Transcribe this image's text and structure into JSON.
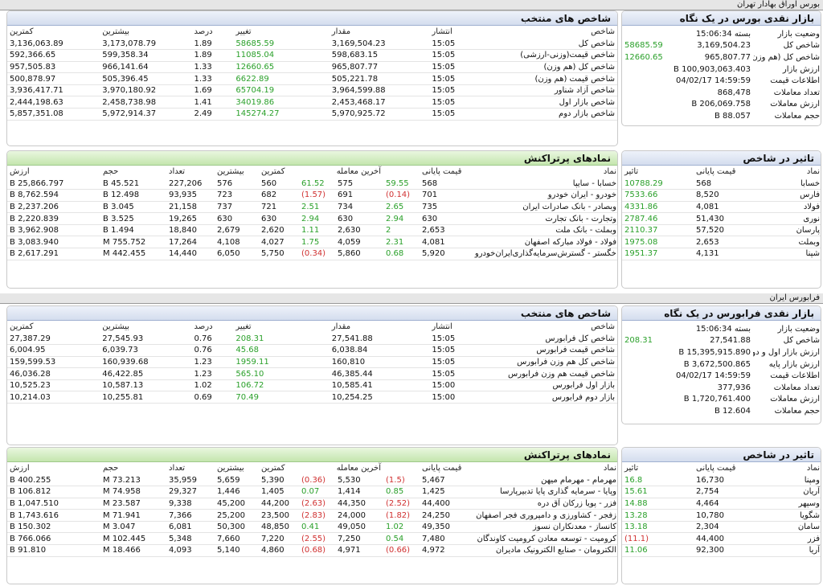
{
  "sections": {
    "bourse": "بورس اوراق بهادار تهران",
    "farabourse": "فرابورس ایران"
  },
  "bourse": {
    "glance": {
      "title": "بازار نقدی بورس در یک نگاه",
      "rows": [
        {
          "label": "وضعیت بازار",
          "value": "بسته 15:06:34",
          "extra": ""
        },
        {
          "label": "شاخص کل",
          "value": "3,169,504.23",
          "extra": "58685.59"
        },
        {
          "label": "شاخص کل (هم وزن)",
          "value": "965,807.77",
          "extra": "12660.65"
        },
        {
          "label": "ارزش بازار",
          "value": "100,903,063.403 B",
          "extra": ""
        },
        {
          "label": "اطلاعات قیمت",
          "value": "14:59:59 04/02/17",
          "extra": ""
        },
        {
          "label": "تعداد معاملات",
          "value": "868,478",
          "extra": ""
        },
        {
          "label": "ارزش معاملات",
          "value": "206,069.758 B",
          "extra": ""
        },
        {
          "label": "حجم معاملات",
          "value": "88.057 B",
          "extra": ""
        }
      ]
    },
    "indices": {
      "title": "شاخص های منتخب",
      "headers": [
        "شاخص",
        "انتشار",
        "مقدار",
        "تغییر",
        "درصد",
        "بیشترین",
        "کمترین"
      ],
      "rows": [
        [
          "شاخص کل",
          "15:05",
          "3,169,504.23",
          "58685.59",
          "1.89",
          "3,173,078.79",
          "3,136,063.89"
        ],
        [
          "شاخص قیمت(وزنی-ارزشی)",
          "15:05",
          "598,683.15",
          "11085.04",
          "1.89",
          "599,358.34",
          "592,366.65"
        ],
        [
          "شاخص کل (هم وزن)",
          "15:05",
          "965,807.77",
          "12660.65",
          "1.33",
          "966,141.64",
          "957,505.83"
        ],
        [
          "شاخص قیمت (هم وزن)",
          "15:05",
          "505,221.78",
          "6622.89",
          "1.33",
          "505,396.45",
          "500,878.97"
        ],
        [
          "شاخص آزاد شناور",
          "15:05",
          "3,964,599.88",
          "65704.19",
          "1.69",
          "3,970,180.92",
          "3,936,417.71"
        ],
        [
          "شاخص بازار اول",
          "15:05",
          "2,453,468.17",
          "34019.86",
          "1.41",
          "2,458,738.98",
          "2,444,198.63"
        ],
        [
          "شاخص بازار دوم",
          "15:05",
          "5,970,925.72",
          "145274.27",
          "2.49",
          "5,972,914.37",
          "5,857,351.08"
        ]
      ]
    },
    "impact": {
      "title": "تاثیر در شاخص",
      "headers": [
        "نماد",
        "قیمت پایانی",
        "تاثیر"
      ],
      "rows": [
        [
          "خسابا",
          "568",
          "10788.29"
        ],
        [
          "فارس",
          "8,520",
          "7533.66"
        ],
        [
          "فولاد",
          "4,081",
          "4331.86"
        ],
        [
          "نوری",
          "51,430",
          "2787.46"
        ],
        [
          "پارسان",
          "57,520",
          "2110.37"
        ],
        [
          "وبملت",
          "2,653",
          "1975.08"
        ],
        [
          "شپنا",
          "4,131",
          "1951.37"
        ]
      ]
    },
    "top": {
      "title": "نمادهای پرتراکنش",
      "headers": [
        "نماد",
        "قیمت پایانی",
        "",
        "آخرین معامله",
        "",
        "کمترین",
        "بیشترین",
        "تعداد",
        "حجم",
        "ارزش"
      ],
      "rows": [
        [
          "خسابا - سایپا",
          "568",
          "59.55",
          "575",
          "61.52",
          "560",
          "576",
          "227,206",
          "45.521 B",
          "25,866.797 B"
        ],
        [
          "خودرو - ایران خودرو",
          "701",
          "(0.14)",
          "691",
          "(1.57)",
          "682",
          "723",
          "93,935",
          "12.498 B",
          "8,762.594 B"
        ],
        [
          "وبصادر - بانک صادرات ایران",
          "735",
          "2.65",
          "734",
          "2.51",
          "721",
          "737",
          "21,158",
          "3.045 B",
          "2,237.206 B"
        ],
        [
          "وتجارت - بانک تجارت",
          "630",
          "2.94",
          "630",
          "2.94",
          "630",
          "630",
          "19,265",
          "3.525 B",
          "2,220.839 B"
        ],
        [
          "وبملت - بانک ملت",
          "2,653",
          "2",
          "2,630",
          "1.11",
          "2,620",
          "2,679",
          "18,840",
          "1.494 B",
          "3,962.908 B"
        ],
        [
          "فولاد - فولاد مبارکه اصفهان",
          "4,081",
          "2.31",
          "4,059",
          "1.75",
          "4,027",
          "4,108",
          "17,264",
          "755.752 M",
          "3,083.940 B"
        ],
        [
          "خگستر - گسترش‌سرمایه‌گذاری‌ایران‌خودرو",
          "5,920",
          "0.68",
          "5,860",
          "(0.34)",
          "5,750",
          "6,050",
          "14,440",
          "442.455 M",
          "2,617.291 B"
        ]
      ]
    }
  },
  "farabourse": {
    "glance": {
      "title": "بازار نقدی فرابورس در یک نگاه",
      "rows": [
        {
          "label": "وضعیت بازار",
          "value": "بسته 15:06:34",
          "extra": ""
        },
        {
          "label": "شاخص کل",
          "value": "27,541.88",
          "extra": "208.31"
        },
        {
          "label": "ارزش بازار اول و دوم",
          "value": "15,395,915.890 B",
          "extra": ""
        },
        {
          "label": "ارزش بازار پایه",
          "value": "3,672,500.865 B",
          "extra": ""
        },
        {
          "label": "اطلاعات قیمت",
          "value": "14:59:59 04/02/17",
          "extra": ""
        },
        {
          "label": "تعداد معاملات",
          "value": "377,936",
          "extra": ""
        },
        {
          "label": "ارزش معاملات",
          "value": "1,720,761.400 B",
          "extra": ""
        },
        {
          "label": "حجم معاملات",
          "value": "12.604 B",
          "extra": ""
        }
      ]
    },
    "indices": {
      "title": "شاخص های منتخب",
      "headers": [
        "شاخص",
        "انتشار",
        "مقدار",
        "تغییر",
        "درصد",
        "بیشترین",
        "کمترین"
      ],
      "rows": [
        [
          "شاخص کل فرابورس",
          "15:05",
          "27,541.88",
          "208.31",
          "0.76",
          "27,545.93",
          "27,387.29"
        ],
        [
          "شاخص قیمت فرابورس",
          "15:05",
          "6,038.84",
          "45.68",
          "0.76",
          "6,039.73",
          "6,004.95"
        ],
        [
          "شاخص کل هم وزن فرابورس",
          "15:05",
          "160,810",
          "1959.11",
          "1.23",
          "160,939.68",
          "159,599.53"
        ],
        [
          "شاخص قیمت هم وزن فرابورس",
          "15:05",
          "46,385.44",
          "565.10",
          "1.23",
          "46,422.85",
          "46,036.28"
        ],
        [
          "بازار اول فرابورس",
          "15:00",
          "10,585.41",
          "106.72",
          "1.02",
          "10,587.13",
          "10,525.23"
        ],
        [
          "بازار دوم فرابورس",
          "15:00",
          "10,254.25",
          "70.49",
          "0.69",
          "10,255.81",
          "10,214.03"
        ]
      ]
    },
    "impact": {
      "title": "تاثیر در شاخص",
      "headers": [
        "نماد",
        "قیمت پایانی",
        "تاثیر"
      ],
      "rows": [
        [
          "ومپنا",
          "16,730",
          "16.8"
        ],
        [
          "آریان",
          "2,754",
          "15.61"
        ],
        [
          "وسپهر",
          "4,464",
          "14.88"
        ],
        [
          "شگویا",
          "10,780",
          "13.28"
        ],
        [
          "سامان",
          "2,304",
          "13.18"
        ],
        [
          "فزر",
          "44,400",
          "(11.1)"
        ],
        [
          "آریا",
          "92,300",
          "11.06"
        ]
      ]
    },
    "top": {
      "title": "نمادهای پرتراکنش",
      "headers": [
        "نماد",
        "قیمت پایانی",
        "",
        "آخرین معامله",
        "",
        "کمترین",
        "بیشترین",
        "تعداد",
        "حجم",
        "ارزش"
      ],
      "rows": [
        [
          "مهرمام - مهرمام میهن",
          "5,467",
          "(1.5)",
          "5,530",
          "(0.36)",
          "5,390",
          "5,659",
          "35,959",
          "73.213 M",
          "400.255 B"
        ],
        [
          "وپایا - سرمایه گذاری پایا تدبیرپارسا",
          "1,425",
          "0.85",
          "1,414",
          "0.07",
          "1,405",
          "1,446",
          "29,327",
          "74.958 M",
          "106.812 B"
        ],
        [
          "فزر - پویا زرکان آق دره",
          "44,400",
          "(2.52)",
          "44,350",
          "(2.63)",
          "44,200",
          "45,200",
          "9,338",
          "23.587 M",
          "1,047.510 B"
        ],
        [
          "زفجر - کشاورزی و دامپروری فجر اصفهان",
          "24,250",
          "(1.82)",
          "24,000",
          "(2.83)",
          "23,500",
          "25,200",
          "7,366",
          "71.941 M",
          "1,743.616 B"
        ],
        [
          "کانساز - معدنکاران نسوز",
          "49,350",
          "1.02",
          "49,050",
          "0.41",
          "48,850",
          "50,300",
          "6,081",
          "3.047 M",
          "150.302 B"
        ],
        [
          "کرومیت - توسعه معادن کرومیت کاوندگان",
          "7,480",
          "0.54",
          "7,250",
          "(2.55)",
          "7,220",
          "7,660",
          "5,348",
          "102.445 M",
          "766.066 B"
        ],
        [
          "الکترومان - صنایع الکترونیک مادیران",
          "4,972",
          "(0.66)",
          "4,971",
          "(0.68)",
          "4,860",
          "5,140",
          "4,093",
          "18.466 M",
          "91.810 B"
        ]
      ]
    }
  },
  "colors": {
    "positive": "#2aa02a",
    "negative": "#d03030",
    "blue_header": "#d4ddee",
    "green_header": "#c4e6ae"
  }
}
